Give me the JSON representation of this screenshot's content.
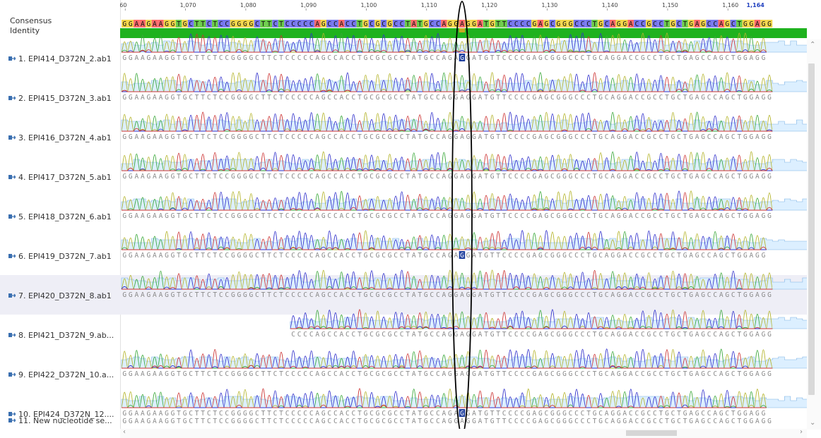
{
  "header": {
    "consensus_label": "Consensus",
    "identity_label": "Identity"
  },
  "ruler": {
    "ticks": [
      "60",
      "1,070",
      "1,080",
      "1,090",
      "1,100",
      "1,110",
      "1,120",
      "1,130",
      "1,140",
      "1,150",
      "1,160"
    ],
    "current": "1,164"
  },
  "consensus_sequence": "GGAAGAAGGTGCTTCTCCGGGGCTTCTCCCCCAGCCACCTGCGCGCCTATGCCAGGAGGATGTTCCCCGAGCGGGCCCTGCAGGACCGCCTGCTGAGCCAGCTGGAGG",
  "sequences": [
    {
      "name": "1. EPI414_D372N_2.ab1",
      "seq": "GGAAGAAGGTGCTTCTCCGGGGCTTCTCCCCCAGCCACCTGCGCGCCTATGCCAGAGGATGTTCCCCGAGCGGGCCCTGCAGGACCGCCTGCTGAGCCAGCTGGAGG"
    },
    {
      "name": "2. EPI415_D372N_3.ab1",
      "seq": "GGAAGAAGGTGCTTCTCCGGGGCTTCTCCCCCAGCCACCTGCGCGCCTATGCCAGGAGGATGTTCCCCGAGCGGGCCCTGCAGGACCGCCTGCTGAGCCAGCTGGAGG"
    },
    {
      "name": "3. EPI416_D372N_4.ab1",
      "seq": "GGAAGAAGGTGCTTCTCCGGGGCTTCTCCCCCAGCCACCTGCGCGCCTATGCCAGGAGGATGTTCCCCGAGCGGGCCCTGCAGGACCGCCTGCTGAGCCAGCTGGAGG"
    },
    {
      "name": "4. EPI417_D372N_5.ab1",
      "seq": "GGAAGAAGGTGCTTCTCCGGGGCTTCTCCCCCAGCCACCTGCGCGCCTATGCCAGGAGGATGTTCCCCGAGCGGGCCCTGCAGGACCGCCTGCTGAGCCAGCTGGAGG"
    },
    {
      "name": "5. EPI418_D372N_6.ab1",
      "seq": "GGAAGAAGGTGCTTCTCCGGGGCTTCTCCCCCAGCCACCTGCGCGCCTATGCCAGGAGGATGTTCCCCGAGCGGGCCCTGCAGGACCGCCTGCTGAGCCAGCTGGAGG"
    },
    {
      "name": "6. EPI419_D372N_7.ab1",
      "seq": "GGAAGAAGGTGCTTCTCCGGGGCTTCTCCCCCAGCCACCTGCGCGCCTATGCCAGAGGATGTTCCCCGAGCGGGCCCTGCAGGACCGCCTGCTGAGCCAGCTGGAGG"
    },
    {
      "name": "7. EPI420_D372N_8.ab1",
      "seq": "GGAAGAAGGTGCTTCTCCGGGGCTTCTCCCCCAGCCACCTGCGCGCCTATGCCAGGAGGATGTTCCCCGAGCGGGCCCTGCAGGACCGCCTGCTGAGCCAGCTGGAGG"
    },
    {
      "name": "8. EPI421_D372N_9.ab...",
      "seq": "CCCCAGCCACCTGCGCGCCTATGCCAGGAGGATGTTCCCCGAGCGGGCCCTGCAGGACCGCCTGCTGAGCCAGCTGGAGG"
    },
    {
      "name": "9. EPI422_D372N_10.a...",
      "seq": "GGAAGAAGGTGCTTCTCCGGGGCTTCTCCCCCAGCCACCTGCGCGCCTATGCCAGGAGGATGTTCCCCGAGCGGGCCCTGCAGGACCGCCTGCTGAGCCAGCTGGAGG"
    },
    {
      "name": "10. EPI424_D372N_12....",
      "seq": "GGAAGAAGGTGCTTCTCCGGGGCTTCTCCCCCAGCCACCTGCGCGCCTATGCCAGAGGATGTTCCCCGAGCGGGCCCTGCAGGACCGCCTGCTGAGCCAGCTGGAGG"
    },
    {
      "name": "11. New nucleotide se...",
      "seq": "GGAAGAAGGTGCTTCTCCGGGGCTTCTCCCCCAGCCACCTGCGCGCCTATGCCAGGAGGATGTTCCCCGAGCGGGCCCTGCAGGACCGCCTGCTGAGCCAGCTGGAGG"
    }
  ],
  "highlighted_base": "A",
  "colors": {
    "A": "#2e9e2e",
    "C": "#2b2bd6",
    "G": "#1a1a1a",
    "T": "#d02020",
    "consensus_bg_A": "#ff6b6b",
    "consensus_bg_C": "#7777ee",
    "consensus_bg_G": "#f3d64a",
    "consensus_bg_T": "#6ccc4a",
    "identity": "#1fb21f",
    "identity_low": "#c8aa22",
    "selected_row": "#eeeef6",
    "highlight_base_bg": "#1f3f9e",
    "annotation_ellipse": "#000000"
  },
  "icons": {
    "sequence": "chromatogram-file-icon",
    "scroll_up": "chevron-up-icon",
    "scroll_left": "chevron-left-icon",
    "scroll_right": "chevron-right-icon"
  }
}
